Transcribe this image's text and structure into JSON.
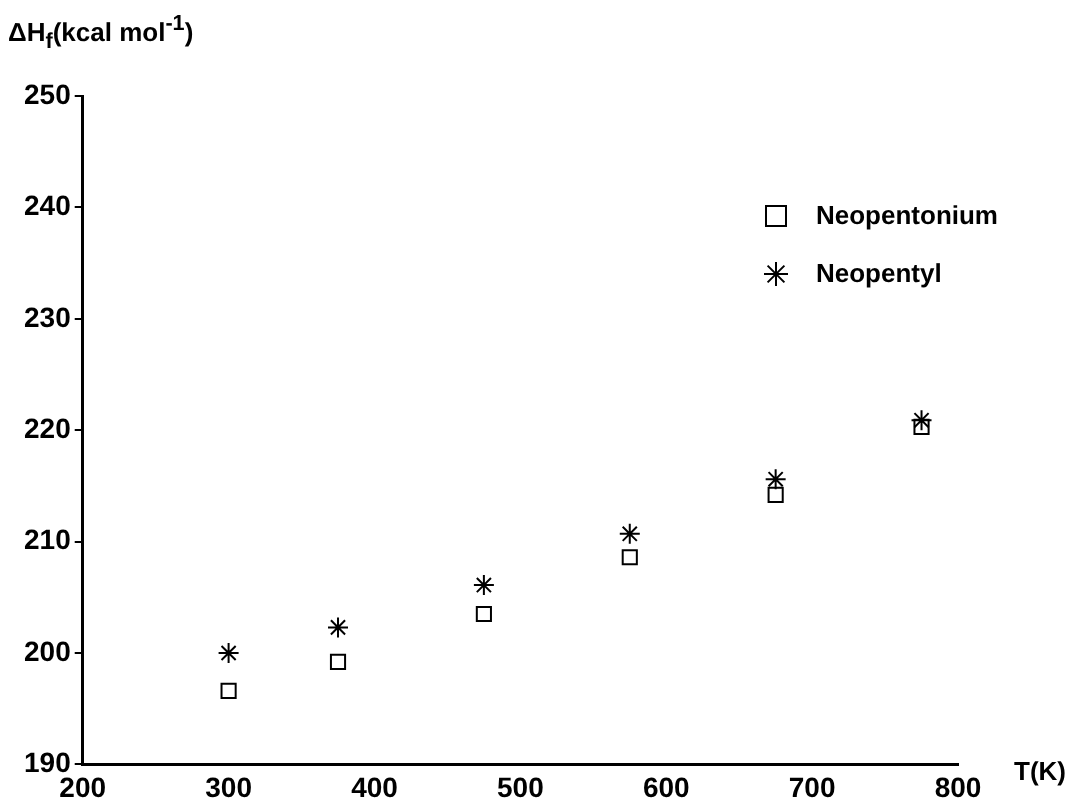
{
  "chart_data": {
    "type": "scatter",
    "ylabel": "ΔH$_{f}$(kcal mol$^{-1}$)",
    "xlabel": "T(K)",
    "x": [
      300,
      375,
      475,
      575,
      675,
      775
    ],
    "series": [
      {
        "name": "Neopentonium",
        "color": "#000000",
        "marker": "square",
        "values": [
          196.6,
          199.2,
          203.5,
          208.6,
          214.2,
          220.3
        ]
      },
      {
        "name": "Neopentyl",
        "color": "#000000",
        "marker": "cross",
        "values": [
          200.0,
          202.3,
          206.1,
          210.7,
          215.6,
          220.9
        ]
      }
    ],
    "xlim": [
      200,
      800
    ],
    "xticks": [
      200,
      300,
      400,
      500,
      600,
      700,
      800
    ],
    "ylim": [
      190,
      250
    ],
    "yticks": [
      190,
      200,
      210,
      220,
      230,
      240,
      250
    ],
    "grid": false,
    "legend": "top right"
  }
}
